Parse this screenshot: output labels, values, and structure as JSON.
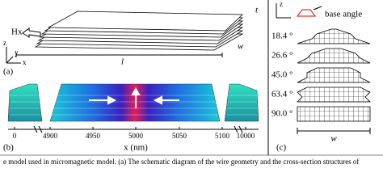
{
  "panel_a": {
    "field": "Hx",
    "label": "(a)",
    "length": "l",
    "width": "w",
    "thickness": "t",
    "axes": [
      "z",
      "y",
      "x"
    ]
  },
  "panel_b": {
    "label": "(b)",
    "ticks": [
      "0",
      "4900",
      "4950",
      "5000",
      "5050",
      "5100",
      "10000"
    ],
    "axis_label": "x (nm)"
  },
  "panel_c": {
    "label": "(c)",
    "axis": "z",
    "legend": "base angle",
    "angles": [
      "18.4 °",
      "26.6 °",
      "45.0 °",
      "63.4 °",
      "90.0 °"
    ],
    "width": "w"
  },
  "caption": "e model used in micromagnetic model. (a) The schematic diagram of the wire geometry and the cross-section structures of"
}
